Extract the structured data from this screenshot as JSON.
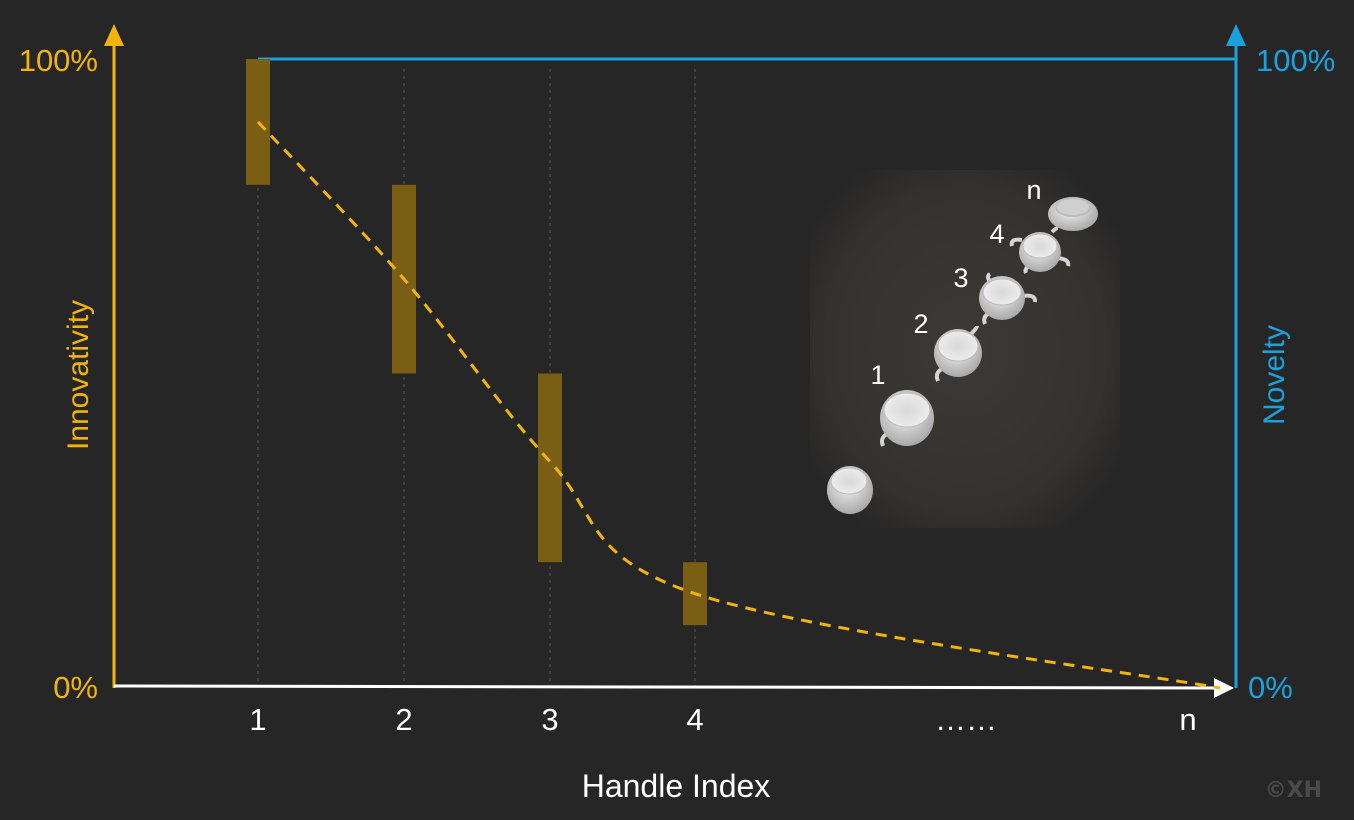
{
  "chart_data": {
    "type": "bar",
    "title": "",
    "xlabel": "Handle Index",
    "ylabel_left": "Innovativity",
    "ylabel_right": "Novelty",
    "categories": [
      "1",
      "2",
      "3",
      "4",
      "……",
      "n"
    ],
    "ylim": [
      0,
      100
    ],
    "y_left_ticks": [
      "100%",
      "0%"
    ],
    "y_right_ticks": [
      "100%",
      "0%"
    ],
    "innovativity_ranges": [
      {
        "index": "1",
        "low": 80,
        "high": 100
      },
      {
        "index": "2",
        "low": 50,
        "high": 80
      },
      {
        "index": "3",
        "low": 20,
        "high": 50
      },
      {
        "index": "4",
        "low": 10,
        "high": 20
      }
    ],
    "novelty_curve": {
      "name": "",
      "x": [
        "1",
        "2",
        "3",
        "4",
        "n"
      ],
      "values": [
        90,
        65,
        36,
        15,
        0
      ],
      "style": "dashed"
    },
    "novelty_max_line": 100,
    "inset_labels": [
      "1",
      "2",
      "3",
      "4",
      "n"
    ],
    "watermark": "©XH"
  },
  "colors": {
    "background": "#262626",
    "left_axis": "#f2b40c",
    "right_axis": "#19a2de",
    "bars": "#7a5e14",
    "curve": "#f2b40c",
    "x_axis": "#ffffff",
    "text": "#ffffff",
    "watermark": "#4a4a4a"
  }
}
